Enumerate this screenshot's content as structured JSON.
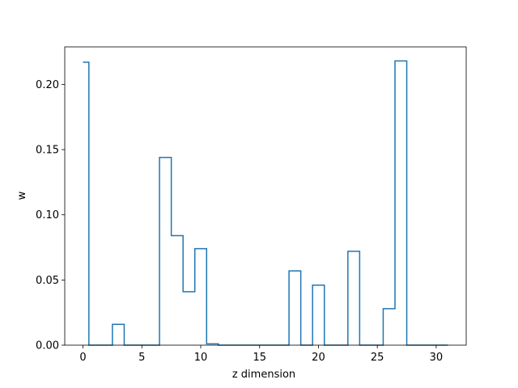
{
  "chart_data": {
    "type": "line",
    "step": "mid",
    "title": "",
    "xlabel": "z dimension",
    "ylabel": "w",
    "xlim": [
      -1.55,
      32.55
    ],
    "ylim": [
      0,
      0.2288
    ],
    "xticks": [
      0,
      5,
      10,
      15,
      20,
      25,
      30
    ],
    "xtick_labels": [
      "0",
      "5",
      "10",
      "15",
      "20",
      "25",
      "30"
    ],
    "yticks": [
      0,
      0.05,
      0.1,
      0.15,
      0.2
    ],
    "ytick_labels": [
      "0.00",
      "0.05",
      "0.10",
      "0.15",
      "0.20"
    ],
    "grid": false,
    "line_color": "#1f77b4",
    "series": [
      {
        "x": [
          0,
          1,
          2,
          3,
          4,
          5,
          6,
          7,
          8,
          9,
          10,
          11,
          12,
          13,
          14,
          15,
          16,
          17,
          18,
          19,
          20,
          21,
          22,
          23,
          24,
          25,
          26,
          27,
          28,
          29,
          30,
          31
        ],
        "values": [
          0.217,
          0,
          0,
          0.016,
          0,
          0,
          0,
          0.144,
          0.084,
          0.041,
          0.074,
          0.001,
          0,
          0,
          0,
          0,
          0,
          0,
          0.057,
          0,
          0.046,
          0,
          0,
          0.072,
          0,
          0,
          0.028,
          0.218,
          0,
          0,
          0,
          0
        ]
      }
    ]
  }
}
